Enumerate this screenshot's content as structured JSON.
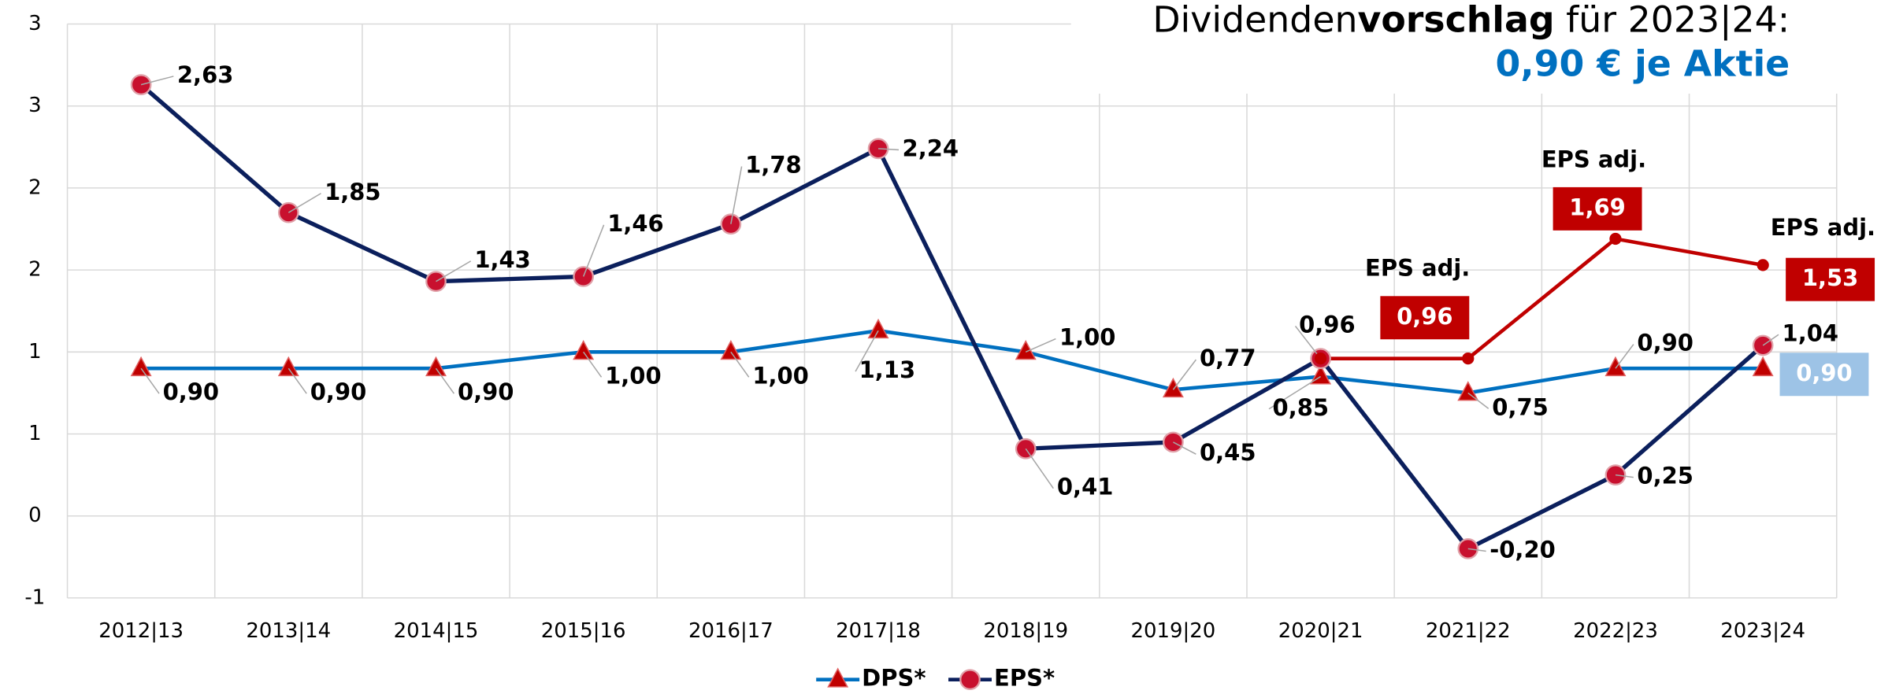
{
  "chart_data": {
    "type": "line",
    "title": [
      "Dividenden",
      "vorschlag",
      " für 2023|24:"
    ],
    "subtitle": "0,90 € je Aktie",
    "categories": [
      "2012|13",
      "2013|14",
      "2014|15",
      "2015|16",
      "2016|17",
      "2017|18",
      "2018|19",
      "2019|20",
      "2020|21",
      "2021|22",
      "2022|23",
      "2023|24"
    ],
    "series": [
      {
        "name": "DPS*",
        "color": "#0070c0",
        "marker": "triangle",
        "values": [
          0.9,
          0.9,
          0.9,
          1.0,
          1.0,
          1.13,
          1.0,
          0.77,
          0.85,
          0.75,
          0.9,
          0.9
        ],
        "value_labels": [
          "0,90",
          "0,90",
          "0,90",
          "1,00",
          "1,00",
          "1,13",
          "1,00",
          "0,77",
          "0,85",
          "0,75",
          "0,90",
          "0,90"
        ]
      },
      {
        "name": "EPS*",
        "color": "#0b1f5c",
        "marker": "circle",
        "values": [
          2.63,
          1.85,
          1.43,
          1.46,
          1.78,
          2.24,
          0.41,
          0.45,
          0.96,
          -0.2,
          0.25,
          1.04
        ],
        "value_labels": [
          "2,63",
          "1,85",
          "1,43",
          "1,46",
          "1,78",
          "2,24",
          "0,41",
          "0,45",
          "0,96",
          "-0,20",
          "0,25",
          "1,04"
        ]
      },
      {
        "color": "#c00000",
        "marker": "dot",
        "values": [
          null,
          null,
          null,
          null,
          null,
          null,
          null,
          null,
          0.96,
          0.96,
          1.69,
          1.53
        ],
        "value_labels": [
          null,
          null,
          null,
          null,
          null,
          null,
          null,
          null,
          null,
          "0,96",
          "1,69",
          "1,53"
        ],
        "annotations": [
          null,
          null,
          null,
          null,
          null,
          null,
          null,
          null,
          null,
          "EPS adj.",
          "EPS adj.",
          "EPS adj."
        ]
      }
    ],
    "ylim": [
      -0.5,
      3
    ],
    "yticks": [
      {
        "value": -0.5,
        "label": "-1"
      },
      0,
      {
        "value": 0.5,
        "label": "1"
      },
      1,
      {
        "value": 1.5,
        "label": "2"
      },
      2,
      {
        "value": 2.5,
        "label": "3"
      },
      3
    ],
    "grid": true,
    "legend": "bottom"
  }
}
